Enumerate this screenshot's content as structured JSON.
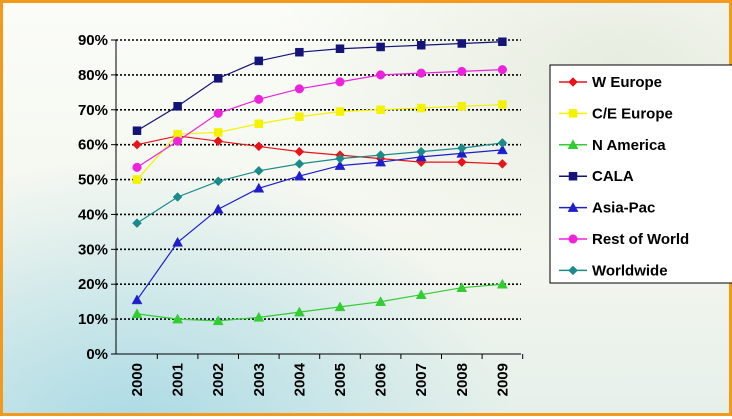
{
  "chart_data": {
    "type": "line",
    "categories": [
      "2000",
      "2001",
      "2002",
      "2003",
      "2004",
      "2005",
      "2006",
      "2007",
      "2008",
      "2009"
    ],
    "ylim": [
      0,
      90
    ],
    "y_ticks": [
      "0%",
      "10%",
      "20%",
      "30%",
      "40%",
      "50%",
      "60%",
      "70%",
      "80%",
      "90%"
    ],
    "grid": "horizontal dotted",
    "legend_position": "right",
    "series": [
      {
        "name": "W Europe",
        "color": "#e8141a",
        "marker": "diamond",
        "values": [
          60,
          62.5,
          61,
          59.5,
          58,
          57,
          56,
          55,
          55,
          54.5
        ]
      },
      {
        "name": "C/E Europe",
        "color": "#f5f200",
        "marker": "square",
        "values": [
          50,
          63,
          63.5,
          66,
          68,
          69.5,
          70,
          70.5,
          71,
          71.5
        ]
      },
      {
        "name": "N America",
        "color": "#33cc33",
        "marker": "triangle",
        "values": [
          11.5,
          10,
          9.5,
          10.5,
          12,
          13.5,
          15,
          17,
          19,
          20
        ]
      },
      {
        "name": "CALA",
        "color": "#141478",
        "marker": "square",
        "values": [
          64,
          71,
          79,
          84,
          86.5,
          87.5,
          88,
          88.5,
          89,
          89.5
        ]
      },
      {
        "name": "Asia-Pac",
        "color": "#1e1ecc",
        "marker": "triangle",
        "values": [
          15.5,
          32,
          41.5,
          47.5,
          51,
          54,
          55,
          56.5,
          57.5,
          58.5
        ]
      },
      {
        "name": "Rest of World",
        "color": "#ee22dd",
        "marker": "circle",
        "values": [
          53.5,
          61,
          69,
          73,
          76,
          78,
          80,
          80.5,
          81,
          81.5
        ]
      },
      {
        "name": "Worldwide",
        "color": "#1a8a8a",
        "marker": "diamond",
        "values": [
          37.5,
          45,
          49.5,
          52.5,
          54.5,
          56,
          57,
          58,
          59,
          60.5
        ]
      }
    ]
  }
}
